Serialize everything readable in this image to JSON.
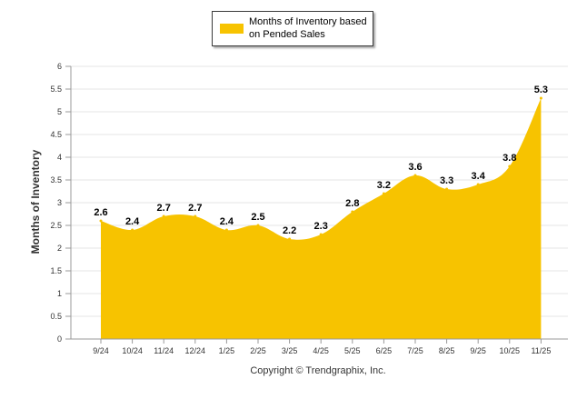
{
  "chart_data": {
    "type": "area",
    "categories": [
      "9/24",
      "10/24",
      "11/24",
      "12/24",
      "1/25",
      "2/25",
      "3/25",
      "4/25",
      "5/25",
      "6/25",
      "7/25",
      "8/25",
      "9/25",
      "10/25",
      "11/25"
    ],
    "series": [
      {
        "name": "Months of Inventory based on Pended Sales",
        "values": [
          2.6,
          2.4,
          2.7,
          2.7,
          2.4,
          2.5,
          2.2,
          2.3,
          2.8,
          3.2,
          3.6,
          3.3,
          3.4,
          3.8,
          5.3
        ],
        "value_labels": [
          "2.6",
          "2.4",
          "2.7",
          "2.7",
          "2.4",
          "2.5",
          "2.2",
          "2.3",
          "2.8",
          "3.2",
          "3.6",
          "3.3",
          "3.4",
          "3.8",
          "5.3"
        ],
        "color": "#f7c300"
      }
    ],
    "ylim": [
      0,
      6
    ],
    "yticks": [
      "0",
      "0.5",
      "1",
      "1.5",
      "2",
      "2.5",
      "3",
      "3.5",
      "4",
      "4.5",
      "5",
      "5.5",
      "6"
    ],
    "ylabel": "Months of Inventory",
    "xlabel": "",
    "grid": true,
    "legend": "top-center"
  },
  "legend": {
    "label": "Months of Inventory based on Pended Sales",
    "color": "#f7c300"
  },
  "footer": {
    "copyright": "Copyright © Trendgraphix, Inc."
  }
}
